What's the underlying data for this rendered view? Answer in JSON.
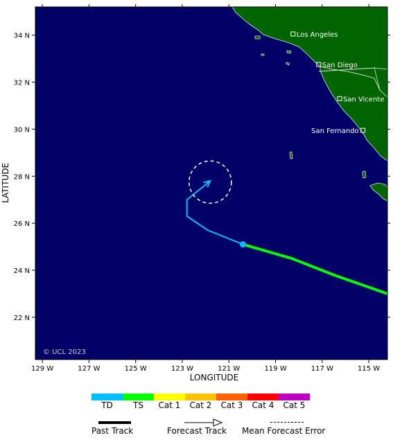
{
  "map": {
    "xlabel": "LONGITUDE",
    "ylabel": "LATITUDE",
    "copyright": "© UCL 2023",
    "lon_range": [
      129.3,
      114.2
    ],
    "lat_range": [
      20.2,
      35.2
    ],
    "lon_ticks": [
      {
        "value": 129,
        "label": "129 W"
      },
      {
        "value": 127,
        "label": "127 W"
      },
      {
        "value": 125,
        "label": "125 W"
      },
      {
        "value": 123,
        "label": "123 W"
      },
      {
        "value": 121,
        "label": "121 W"
      },
      {
        "value": 119,
        "label": "119 W"
      },
      {
        "value": 117,
        "label": "117 W"
      },
      {
        "value": 115,
        "label": "115 W"
      }
    ],
    "lat_ticks": [
      {
        "value": 34,
        "label": "34 N"
      },
      {
        "value": 32,
        "label": "32 N"
      },
      {
        "value": 30,
        "label": "30 N"
      },
      {
        "value": 28,
        "label": "28 N"
      },
      {
        "value": 26,
        "label": "26 N"
      },
      {
        "value": 24,
        "label": "24 N"
      },
      {
        "value": 22,
        "label": "22 N"
      }
    ],
    "colors": {
      "ocean": "#000066",
      "land": "#006400",
      "land_border": "#dfe9df",
      "TD": "#00bfff",
      "TS": "#00ff00",
      "Cat 1": "#ffff00",
      "Cat 2": "#ffc000",
      "Cat 3": "#ff6000",
      "Cat 4": "#ff0000",
      "Cat 5": "#c000c0"
    },
    "cities": [
      {
        "name": "Los Angeles",
        "lon": 118.25,
        "lat": 34.05,
        "label_side": "right"
      },
      {
        "name": "San Diego",
        "lon": 117.15,
        "lat": 32.75,
        "label_side": "right"
      },
      {
        "name": "San Vicente",
        "lon": 116.25,
        "lat": 31.3,
        "label_side": "right"
      },
      {
        "name": "San Fernando",
        "lon": 115.25,
        "lat": 29.95,
        "label_side": "left"
      }
    ],
    "past_track": {
      "intensity": "TS",
      "points": [
        [
          114.2,
          23.0
        ],
        [
          116.5,
          23.8
        ],
        [
          118.3,
          24.5
        ],
        [
          120.4,
          25.1
        ]
      ]
    },
    "current_position": {
      "lon": 120.4,
      "lat": 25.1
    },
    "forecast_track": {
      "intensity": "TD",
      "points": [
        [
          120.4,
          25.1
        ],
        [
          121.9,
          25.7
        ],
        [
          122.8,
          26.3
        ],
        [
          122.8,
          27.0
        ],
        [
          121.8,
          27.8
        ]
      ]
    },
    "forecast_error_circle": {
      "lon": 121.8,
      "lat": 27.75,
      "radius_deg": 0.9
    }
  },
  "legend": {
    "categories": [
      "TD",
      "TS",
      "Cat 1",
      "Cat 2",
      "Cat 3",
      "Cat 4",
      "Cat 5"
    ],
    "past_track_label": "Past Track",
    "forecast_track_label": "Forecast Track",
    "error_label": "Mean Forecast Error"
  }
}
